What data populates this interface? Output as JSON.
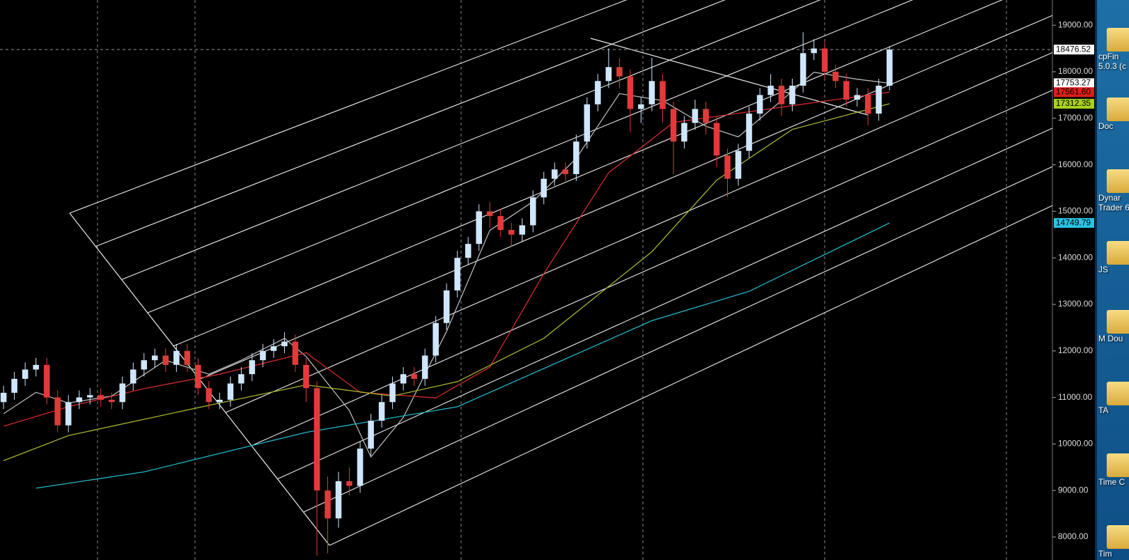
{
  "chart_data": {
    "type": "candlestick",
    "ylim": [
      7506,
      19542
    ],
    "xlim": [
      -0.33,
      97.07
    ],
    "yticks": [
      {
        "value": 8000,
        "label": "8000.00"
      },
      {
        "value": 9000,
        "label": "9000.00"
      },
      {
        "value": 10000,
        "label": "10000.00"
      },
      {
        "value": 11000,
        "label": "11000.00"
      },
      {
        "value": 12000,
        "label": "12000.00"
      },
      {
        "value": 13000,
        "label": "13000.00"
      },
      {
        "value": 14000,
        "label": "14000.00"
      },
      {
        "value": 15000,
        "label": "15000.00"
      },
      {
        "value": 16000,
        "label": "16000.00"
      },
      {
        "value": 17000,
        "label": "17000.00"
      },
      {
        "value": 18000,
        "label": "18000.00"
      },
      {
        "value": 19000,
        "label": "19000.00"
      }
    ],
    "up_color": "#cfe6ff",
    "down_color": "#e23a3a",
    "open": [
      10900,
      11100,
      11400,
      11600,
      11700,
      11000,
      10400,
      10900,
      11000,
      11050,
      10950,
      10900,
      11300,
      11600,
      11800,
      11900,
      11700,
      12000,
      11700,
      11200,
      10900,
      10950,
      11300,
      11500,
      11800,
      12000,
      12100,
      12200,
      11700,
      11200,
      9000,
      8400,
      9200,
      9100,
      9900,
      10500,
      10900,
      11300,
      11500,
      11400,
      11900,
      12600,
      13300,
      14000,
      14300,
      15000,
      14900,
      14600,
      14500,
      14700,
      15300,
      15700,
      15900,
      15800,
      16500,
      17300,
      17800,
      18100,
      17900,
      17200,
      17300,
      17800,
      17200,
      16500,
      16900,
      17200,
      16900,
      16200,
      15700,
      16300,
      17100,
      17500,
      17700,
      17300,
      17700,
      18400,
      18500,
      18000,
      17800,
      17400,
      17500,
      17100,
      17700
    ],
    "high": [
      11250,
      11550,
      11750,
      11850,
      11850,
      11150,
      11050,
      11150,
      11200,
      11200,
      11100,
      11450,
      11750,
      11950,
      12050,
      12050,
      12150,
      12150,
      11850,
      11350,
      11100,
      11450,
      11650,
      11950,
      12150,
      12250,
      12400,
      12350,
      11850,
      11350,
      9300,
      9400,
      9500,
      10050,
      10650,
      11050,
      11450,
      11650,
      11650,
      12050,
      12750,
      13450,
      14150,
      14450,
      15150,
      15200,
      15050,
      14750,
      14850,
      15450,
      15850,
      16050,
      16050,
      16650,
      17450,
      17950,
      18500,
      18300,
      18050,
      17450,
      18300,
      17950,
      17350,
      17050,
      17400,
      17350,
      17050,
      16350,
      16450,
      17250,
      17650,
      17950,
      17850,
      17850,
      18850,
      18700,
      18650,
      18150,
      17950,
      17650,
      17650,
      17850,
      18550
    ],
    "low": [
      10750,
      10950,
      11250,
      11450,
      10850,
      10250,
      10250,
      10750,
      10850,
      10800,
      10750,
      10750,
      11150,
      11450,
      11650,
      11550,
      11550,
      11550,
      11050,
      10750,
      10750,
      10800,
      11150,
      11350,
      11650,
      11850,
      11950,
      11550,
      10900,
      7600,
      7650,
      8200,
      8900,
      8950,
      9750,
      10350,
      10750,
      11150,
      11250,
      11250,
      11750,
      12450,
      13150,
      13850,
      14150,
      14650,
      14450,
      14250,
      14350,
      14550,
      15150,
      15550,
      15650,
      15650,
      16350,
      17150,
      17650,
      17650,
      16700,
      16900,
      17150,
      16900,
      15800,
      16350,
      16750,
      16650,
      15950,
      15300,
      15550,
      16150,
      16950,
      17350,
      17050,
      17150,
      17550,
      18250,
      17850,
      17650,
      17250,
      17250,
      16850,
      16950,
      17600
    ],
    "close": [
      11100,
      11400,
      11600,
      11700,
      11000,
      10400,
      10900,
      11000,
      11050,
      10950,
      10900,
      11300,
      11600,
      11800,
      11900,
      11700,
      12000,
      11700,
      11200,
      10900,
      10950,
      11300,
      11500,
      11800,
      12000,
      12100,
      12200,
      11700,
      11200,
      9000,
      8400,
      9200,
      9100,
      9900,
      10500,
      10900,
      11300,
      11500,
      11400,
      11900,
      12600,
      13300,
      14000,
      14300,
      15000,
      14900,
      14600,
      14500,
      14700,
      15300,
      15700,
      15900,
      15800,
      16500,
      17300,
      17800,
      18100,
      17900,
      17200,
      17300,
      17800,
      17200,
      16500,
      16900,
      17200,
      16900,
      16200,
      15700,
      16300,
      17100,
      17500,
      17700,
      17300,
      17700,
      18400,
      18500,
      18000,
      17800,
      17400,
      17500,
      17100,
      17700,
      18476.52
    ],
    "series": [
      {
        "color": "#b8b8b8",
        "x": [
          0,
          3,
          6,
          10,
          15,
          19,
          22,
          26,
          28,
          32,
          34,
          37,
          41,
          45,
          49,
          53,
          57,
          61,
          65,
          68,
          72,
          75,
          79,
          82
        ],
        "values": [
          10650,
          11110,
          10880,
          11030,
          11800,
          11500,
          11800,
          12270,
          11880,
          10720,
          9720,
          10570,
          12420,
          14590,
          15210,
          16140,
          17530,
          17380,
          16830,
          16600,
          17380,
          17990,
          17840,
          17753.27
        ]
      },
      {
        "color": "#d42a2a",
        "x": [
          0,
          6,
          13,
          20,
          28,
          33,
          40,
          45,
          50,
          56,
          62,
          69,
          76,
          82
        ],
        "values": [
          10380,
          10800,
          11190,
          11500,
          11960,
          11110,
          10990,
          11650,
          13660,
          15830,
          16910,
          17140,
          17370,
          17561.6
        ]
      },
      {
        "color": "#a9b52a",
        "x": [
          0,
          6,
          20,
          28,
          36,
          42,
          50,
          60,
          66,
          73,
          82
        ],
        "values": [
          9640,
          10180,
          10880,
          11270,
          11030,
          11340,
          12270,
          14130,
          15670,
          16760,
          17312.35
        ]
      },
      {
        "color": "#1fb8c9",
        "x": [
          3,
          13,
          28,
          42,
          60,
          69,
          82
        ],
        "values": [
          9050,
          9400,
          10250,
          10800,
          12650,
          13280,
          14749.79
        ]
      }
    ],
    "price_tags": [
      {
        "value": 18476.52,
        "label": "18476.52",
        "color": "#ffffff",
        "text_color": "#000000"
      },
      {
        "value": 17753.27,
        "label": "17753.27",
        "color": "#ffffff",
        "text_color": "#000000"
      },
      {
        "value": 17561.6,
        "label": "17561.60",
        "color": "#e01b1b",
        "text_color": "#000000"
      },
      {
        "value": 17312.35,
        "label": "17312.35",
        "color": "#a8d020",
        "text_color": "#000000"
      },
      {
        "value": 14749.79,
        "label": "14749.79",
        "color": "#29c4e6",
        "text_color": "#000000"
      }
    ]
  },
  "desktop": {
    "icons": [
      [
        "cpFin",
        "5.0.3 (c"
      ],
      [
        "Doc"
      ],
      [
        "Dynar",
        "Trader 6"
      ],
      [
        "JS"
      ],
      [
        "M Dou"
      ],
      [
        "TA"
      ],
      [
        "Time C"
      ],
      [
        "Tim"
      ]
    ]
  }
}
